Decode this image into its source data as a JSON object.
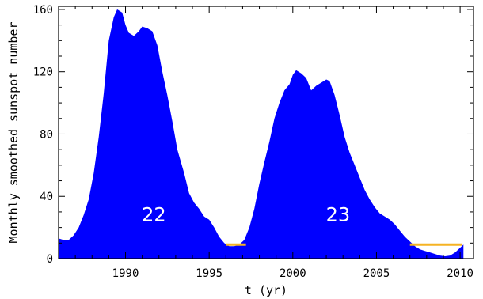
{
  "chart_data": {
    "type": "area",
    "xlabel": "t (yr)",
    "ylabel": "Monthly smoothed sunspot number",
    "xlim": [
      1986,
      2010.8
    ],
    "ylim": [
      0,
      162
    ],
    "x_ticks": [
      1990,
      1995,
      2000,
      2005,
      2010
    ],
    "y_ticks": [
      0,
      40,
      80,
      120,
      160
    ],
    "grid": false,
    "colors": {
      "fill": "#0000ff",
      "threshold": "#f5b324",
      "axis": "#000000"
    },
    "series": [
      {
        "values": [
          [
            1986.0,
            13
          ],
          [
            1986.3,
            12
          ],
          [
            1986.6,
            12
          ],
          [
            1986.9,
            15
          ],
          [
            1987.2,
            20
          ],
          [
            1987.5,
            28
          ],
          [
            1987.8,
            38
          ],
          [
            1988.1,
            55
          ],
          [
            1988.4,
            78
          ],
          [
            1988.7,
            106
          ],
          [
            1989.0,
            140
          ],
          [
            1989.3,
            155
          ],
          [
            1989.5,
            160
          ],
          [
            1989.8,
            158
          ],
          [
            1990.0,
            150
          ],
          [
            1990.2,
            145
          ],
          [
            1990.5,
            143
          ],
          [
            1990.8,
            146
          ],
          [
            1991.0,
            149
          ],
          [
            1991.3,
            148
          ],
          [
            1991.6,
            146
          ],
          [
            1991.9,
            137
          ],
          [
            1992.2,
            120
          ],
          [
            1992.5,
            105
          ],
          [
            1992.8,
            88
          ],
          [
            1993.1,
            70
          ],
          [
            1993.5,
            55
          ],
          [
            1993.8,
            42
          ],
          [
            1994.1,
            36
          ],
          [
            1994.4,
            32
          ],
          [
            1994.7,
            27
          ],
          [
            1995.0,
            25
          ],
          [
            1995.3,
            20
          ],
          [
            1995.6,
            14
          ],
          [
            1995.9,
            10
          ],
          [
            1996.2,
            8
          ],
          [
            1996.5,
            8
          ],
          [
            1996.8,
            9
          ],
          [
            1997.1,
            12
          ],
          [
            1997.4,
            20
          ],
          [
            1997.7,
            32
          ],
          [
            1998.0,
            48
          ],
          [
            1998.3,
            62
          ],
          [
            1998.6,
            75
          ],
          [
            1998.9,
            90
          ],
          [
            1999.2,
            100
          ],
          [
            1999.5,
            108
          ],
          [
            1999.8,
            112
          ],
          [
            2000.0,
            118
          ],
          [
            2000.2,
            121
          ],
          [
            2000.5,
            119
          ],
          [
            2000.8,
            116
          ],
          [
            2001.1,
            108
          ],
          [
            2001.4,
            111
          ],
          [
            2001.7,
            113
          ],
          [
            2002.0,
            115
          ],
          [
            2002.2,
            114
          ],
          [
            2002.5,
            105
          ],
          [
            2002.8,
            92
          ],
          [
            2003.1,
            78
          ],
          [
            2003.4,
            68
          ],
          [
            2003.7,
            60
          ],
          [
            2004.0,
            52
          ],
          [
            2004.3,
            44
          ],
          [
            2004.6,
            38
          ],
          [
            2004.9,
            33
          ],
          [
            2005.2,
            29
          ],
          [
            2005.5,
            27
          ],
          [
            2005.8,
            25
          ],
          [
            2006.1,
            22
          ],
          [
            2006.4,
            18
          ],
          [
            2006.7,
            14
          ],
          [
            2007.0,
            11
          ],
          [
            2007.3,
            8
          ],
          [
            2007.6,
            6
          ],
          [
            2007.9,
            5
          ],
          [
            2008.2,
            4
          ],
          [
            2008.5,
            3
          ],
          [
            2008.8,
            2
          ],
          [
            2009.1,
            1.5
          ],
          [
            2009.4,
            2
          ],
          [
            2009.7,
            4
          ],
          [
            2010.0,
            7
          ],
          [
            2010.2,
            9
          ]
        ]
      }
    ],
    "threshold_segments": [
      {
        "x_start": 1996.0,
        "x_end": 1997.2,
        "y": 9
      },
      {
        "x_start": 2007.0,
        "x_end": 2010.1,
        "y": 9
      }
    ],
    "annotations": [
      {
        "text": "22",
        "x": 1991.7,
        "y": 24
      },
      {
        "text": "23",
        "x": 2002.7,
        "y": 24
      }
    ]
  }
}
